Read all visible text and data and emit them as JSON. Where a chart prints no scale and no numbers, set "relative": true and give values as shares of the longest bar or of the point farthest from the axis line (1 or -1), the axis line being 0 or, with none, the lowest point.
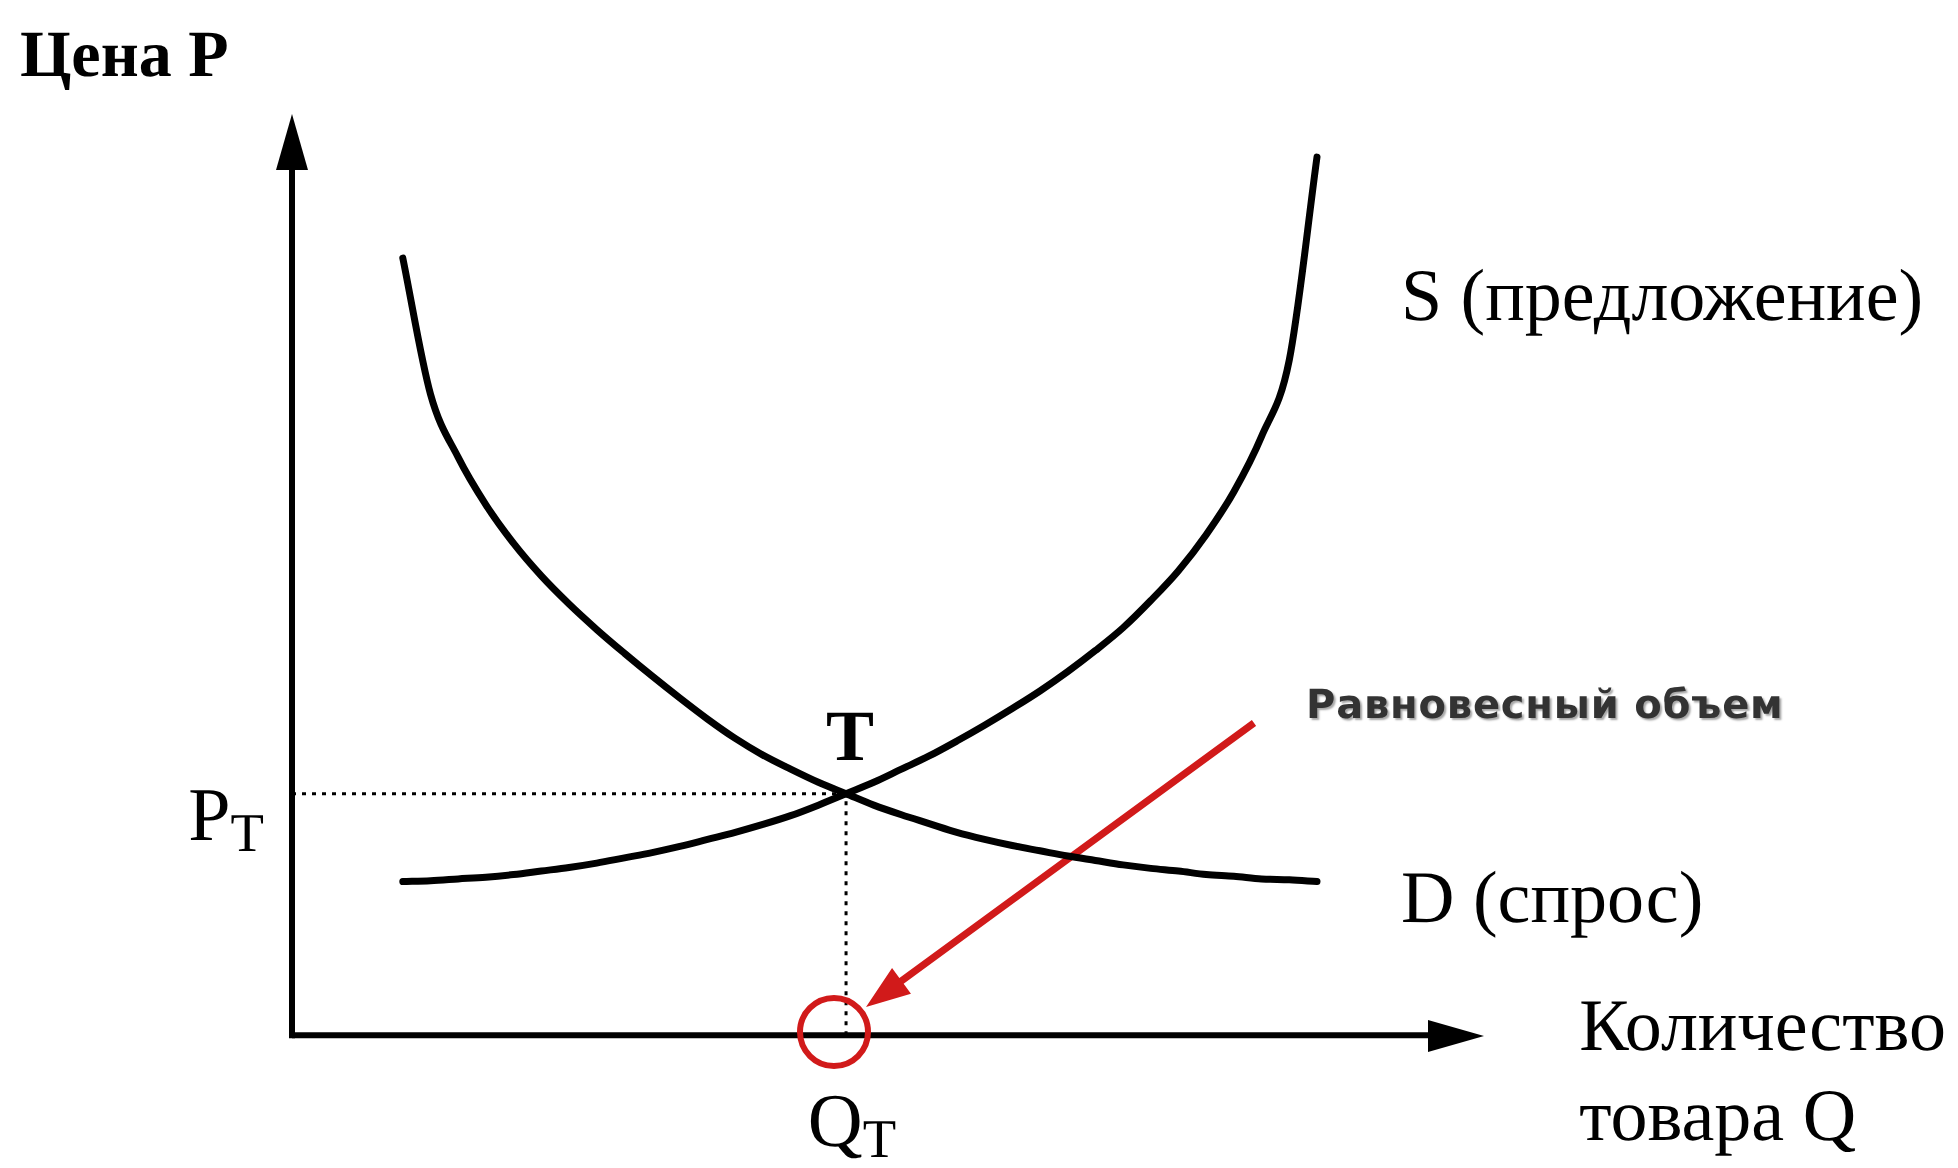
{
  "chart_data": {
    "type": "line",
    "relative": true,
    "marker": "none",
    "xlabel": "Количество товара Q",
    "ylabel": "Цена P",
    "categories": [
      null,
      null,
      null,
      null,
      null,
      null,
      null,
      null,
      null,
      null,
      null,
      null,
      null,
      null,
      null,
      null,
      null,
      null,
      null,
      null,
      null,
      null,
      null,
      null,
      null,
      null,
      null,
      null,
      null,
      null,
      null,
      null,
      null,
      null,
      null,
      null,
      null,
      null,
      null,
      null,
      null,
      null,
      null,
      null
    ],
    "series": [
      {
        "name": "S (предложение)",
        "color": "#000000",
        "values": [
          null,
          null,
          null,
          null,
          0.175,
          0.176,
          0.178,
          0.18,
          0.183,
          0.187,
          0.191,
          0.196,
          0.202,
          0.208,
          0.215,
          0.223,
          0.231,
          0.24,
          0.25,
          0.262,
          0.275,
          0.288,
          0.303,
          0.318,
          0.335,
          0.353,
          0.372,
          0.392,
          0.414,
          0.438,
          0.464,
          0.495,
          0.529,
          0.57,
          0.619,
          0.682,
          0.769,
          1.0,
          null,
          null,
          null,
          null,
          null,
          null
        ]
      },
      {
        "name": "D (спрос)",
        "color": "#000000",
        "values": [
          null,
          null,
          null,
          null,
          0.885,
          0.73,
          0.658,
          0.604,
          0.56,
          0.523,
          0.491,
          0.462,
          0.435,
          0.409,
          0.384,
          0.36,
          0.338,
          0.319,
          0.303,
          0.288,
          0.275,
          0.262,
          0.251,
          0.241,
          0.231,
          0.223,
          0.216,
          0.21,
          0.204,
          0.199,
          0.194,
          0.19,
          0.187,
          0.183,
          0.181,
          0.178,
          0.177,
          0.175,
          null,
          null,
          null,
          null,
          null,
          null
        ]
      }
    ],
    "ref_lines": [
      {
        "axis": "y",
        "value": 0.275,
        "label": "P$_{T}$",
        "line_style": "dotted",
        "color": "#000000"
      },
      {
        "axis": "x",
        "value": "Q$_{T}$",
        "line_style": "dotted",
        "color": "#000000"
      }
    ],
    "annotations": [
      {
        "text": "T",
        "y": 0.275
      },
      "Равновесный объем"
    ]
  }
}
